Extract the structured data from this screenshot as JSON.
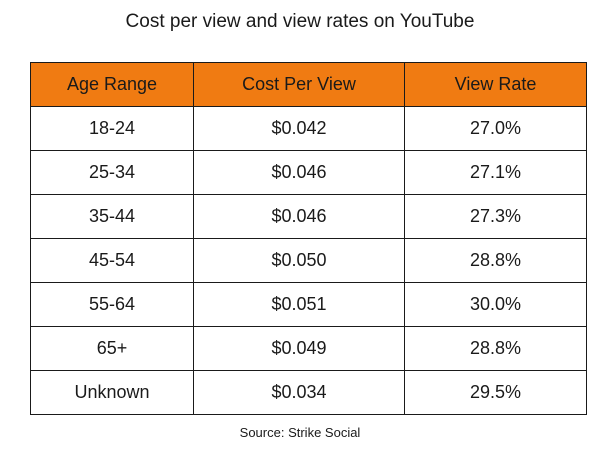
{
  "title": "Cost per view and view rates on YouTube",
  "source": "Source: Strike Social",
  "colors": {
    "header_background": "#F07B12",
    "border": "#1a1a1a",
    "text": "#1a1a1a"
  },
  "chart_data": {
    "type": "table",
    "title": "Cost per view and view rates on YouTube",
    "columns": [
      "Age Range",
      "Cost Per View",
      "View Rate"
    ],
    "rows": [
      [
        "18-24",
        "$0.042",
        "27.0%"
      ],
      [
        "25-34",
        "$0.046",
        "27.1%"
      ],
      [
        "35-44",
        "$0.046",
        "27.3%"
      ],
      [
        "45-54",
        "$0.050",
        "28.8%"
      ],
      [
        "55-64",
        "$0.051",
        "30.0%"
      ],
      [
        "65+",
        "$0.049",
        "28.8%"
      ],
      [
        "Unknown",
        "$0.034",
        "29.5%"
      ]
    ]
  }
}
